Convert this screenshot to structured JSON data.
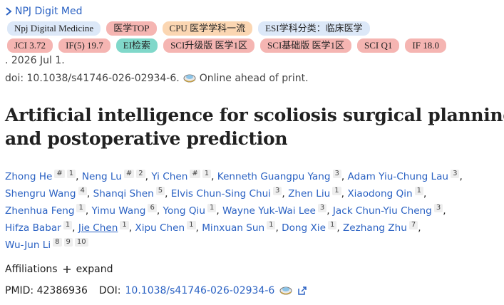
{
  "journal": "NPJ Digit Med",
  "badges": [
    [
      {
        "text": "Npj Digital Medicine",
        "color": "#dce8f8"
      },
      {
        "text": "医学TOP",
        "color": "#f5b5b2"
      },
      {
        "text": "CPU 医学学科一流",
        "color": "#fbd6b2"
      },
      {
        "text": "ESI学科分类：临床医学",
        "color": "#dce8f8"
      }
    ],
    [
      {
        "text": "JCI 3.72",
        "color": "#f5b5b2"
      },
      {
        "text": "IF(5) 19.7",
        "color": "#f5b5b2"
      },
      {
        "text": "EI检索",
        "color": "#80d8ca"
      },
      {
        "text": "SCI升级版 医学1区",
        "color": "#f5b5b2"
      },
      {
        "text": "SCI基础版 医学1区",
        "color": "#f5b5b2"
      },
      {
        "text": "SCI Q1",
        "color": "#f5b5b2"
      },
      {
        "text": "IF 18.0",
        "color": "#f5b5b2"
      }
    ]
  ],
  "date": ". 2026 Jul 1.",
  "doi_line": "doi: 10.1038/s41746-026-02934-6.",
  "status": "Online ahead of print.",
  "title": [
    "Artificial intelligence for scoliosis surgical planning",
    "and postoperative prediction"
  ],
  "author_separator": ",",
  "author_lines": [
    [
      {
        "name": "Zhong He",
        "sup": [
          "#",
          "1"
        ]
      },
      {
        "name": "Neng Lu",
        "sup": [
          "#",
          "2"
        ]
      },
      {
        "name": "Yi Chen",
        "sup": [
          "#",
          "1"
        ]
      },
      {
        "name": "Kenneth Guangpu Yang",
        "sup": [
          "3"
        ]
      },
      {
        "name": "Adam Yiu-Chung Lau",
        "sup": [
          "3"
        ]
      }
    ],
    [
      {
        "name": "Shengru Wang",
        "sup": [
          "4"
        ]
      },
      {
        "name": "Shanqi Shen",
        "sup": [
          "5"
        ]
      },
      {
        "name": "Elvis Chun-Sing Chui",
        "sup": [
          "3"
        ]
      },
      {
        "name": "Zhen Liu",
        "sup": [
          "1"
        ]
      },
      {
        "name": "Xiaodong Qin",
        "sup": [
          "1"
        ]
      }
    ],
    [
      {
        "name": "Zhenhua Feng",
        "sup": [
          "1"
        ]
      },
      {
        "name": "Yimu Wang",
        "sup": [
          "6"
        ]
      },
      {
        "name": "Yong Qiu",
        "sup": [
          "1"
        ]
      },
      {
        "name": "Wayne Yuk-Wai Lee",
        "sup": [
          "3"
        ]
      },
      {
        "name": "Jack Chun-Yiu Cheng",
        "sup": [
          "3"
        ]
      }
    ],
    [
      {
        "name": "Hifza Babar",
        "sup": [
          "1"
        ]
      },
      {
        "name": "Jie Chen",
        "sup": [
          "1"
        ],
        "underline": true
      },
      {
        "name": "Xipu Chen",
        "sup": [
          "1"
        ]
      },
      {
        "name": "Minxuan Sun",
        "sup": [
          "1"
        ]
      },
      {
        "name": "Dong Xie",
        "sup": [
          "1"
        ]
      },
      {
        "name": "Zezhang Zhu",
        "sup": [
          "7"
        ]
      }
    ],
    [
      {
        "name": "Wu-Jun Li",
        "sup": [
          "8",
          "9",
          "10"
        ]
      }
    ]
  ],
  "affiliations": "Affiliations",
  "expand": "expand",
  "pmid": "PMID: 42386936",
  "doi_label": "DOI:",
  "doi": "10.1038/s41746-026-02934-6"
}
